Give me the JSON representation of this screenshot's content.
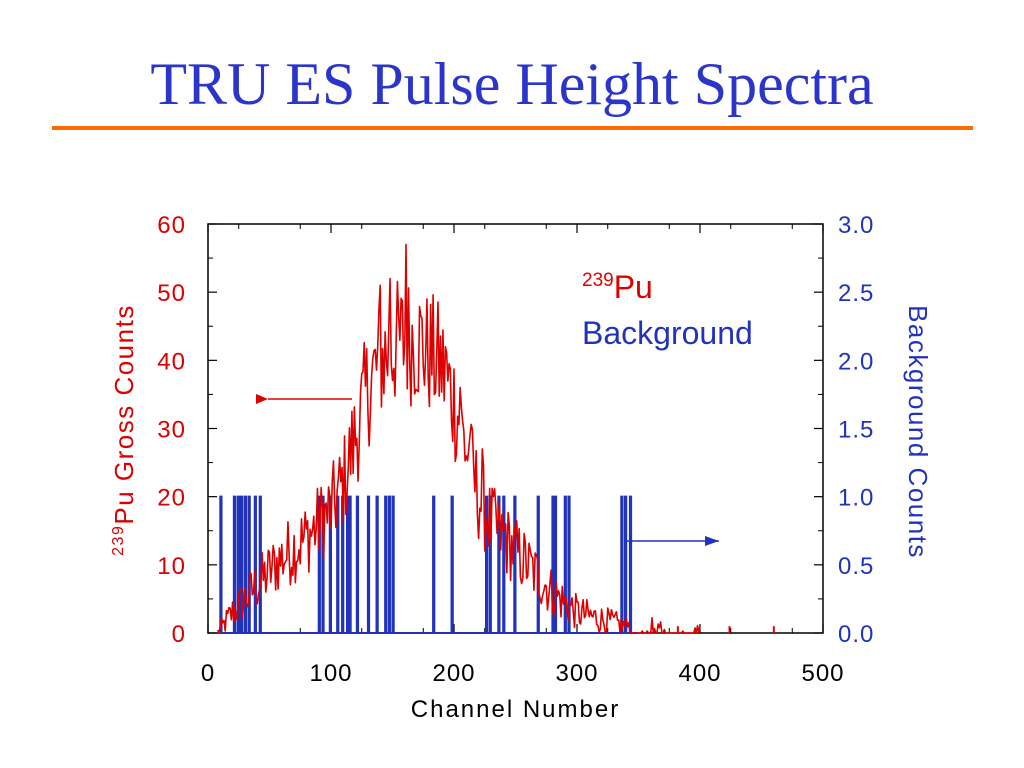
{
  "slide": {
    "title": "TRU ES Pulse Height Spectra",
    "title_color": "#2b35c9",
    "rule_color": "#ff6a00"
  },
  "chart_data": {
    "type": "line",
    "title": "",
    "xlabel": "Channel Number",
    "ylabel_left": {
      "sup": "239",
      "text": "Pu Gross Counts"
    },
    "ylabel_right": "Background Counts",
    "xlim": [
      0,
      500
    ],
    "ylim_left": [
      0,
      60
    ],
    "ylim_right": [
      0,
      3.0
    ],
    "x_ticks": [
      "0",
      "100",
      "200",
      "300",
      "400",
      "500"
    ],
    "y_left_ticks": [
      "0",
      "10",
      "20",
      "30",
      "40",
      "50",
      "60"
    ],
    "y_right_ticks": [
      "0.0",
      "0.5",
      "1.0",
      "1.5",
      "2.0",
      "2.5",
      "3.0"
    ],
    "grid": false,
    "legend_placement": "top-right",
    "legend": [
      {
        "sup": "239",
        "text": "Pu",
        "color": "#dd0000"
      },
      {
        "text": "Background",
        "color": "#2233bb"
      }
    ],
    "series": [
      {
        "name": "239Pu",
        "axis": "left",
        "color": "#dd0000",
        "envelope": [
          [
            8,
            0
          ],
          [
            20,
            3
          ],
          [
            40,
            7
          ],
          [
            60,
            11
          ],
          [
            80,
            14
          ],
          [
            100,
            18
          ],
          [
            110,
            22
          ],
          [
            120,
            29
          ],
          [
            130,
            36
          ],
          [
            140,
            40
          ],
          [
            150,
            42
          ],
          [
            160,
            43
          ],
          [
            170,
            43
          ],
          [
            180,
            41
          ],
          [
            190,
            39
          ],
          [
            200,
            34
          ],
          [
            210,
            27
          ],
          [
            220,
            20
          ],
          [
            230,
            16
          ],
          [
            240,
            14
          ],
          [
            250,
            12
          ],
          [
            260,
            10
          ],
          [
            270,
            8
          ],
          [
            280,
            6
          ],
          [
            300,
            3
          ],
          [
            320,
            2
          ],
          [
            340,
            1
          ],
          [
            360,
            1
          ],
          [
            380,
            0.5
          ],
          [
            400,
            0
          ]
        ],
        "peaks": [
          [
            161,
            57
          ],
          [
            140,
            51
          ],
          [
            148,
            52
          ],
          [
            178,
            49
          ],
          [
            193,
            42
          ],
          [
            205,
            36
          ],
          [
            213,
            29
          ],
          [
            223,
            27
          ],
          [
            232,
            20
          ],
          [
            242,
            16
          ]
        ],
        "sparse_points": [
          [
            382,
            1
          ],
          [
            424,
            1
          ],
          [
            460,
            1
          ]
        ]
      },
      {
        "name": "Background",
        "axis": "right",
        "color": "#2233bb",
        "x": [
          10,
          21,
          24,
          26,
          27,
          30,
          33,
          38,
          42,
          90,
          93,
          99,
          105,
          109,
          113,
          115,
          121,
          130,
          137,
          144,
          147,
          150,
          183,
          198,
          226,
          229,
          236,
          240,
          249,
          268,
          280,
          282,
          290,
          293,
          336,
          339,
          343
        ],
        "y": [
          1,
          1,
          1,
          1,
          1,
          1,
          1,
          1,
          1,
          1,
          1,
          1,
          1,
          1,
          1,
          1,
          1,
          1,
          1,
          1,
          1,
          1,
          1,
          1,
          1,
          1,
          1,
          1,
          1,
          1,
          1,
          1,
          1,
          1,
          1,
          1,
          1
        ]
      }
    ]
  }
}
